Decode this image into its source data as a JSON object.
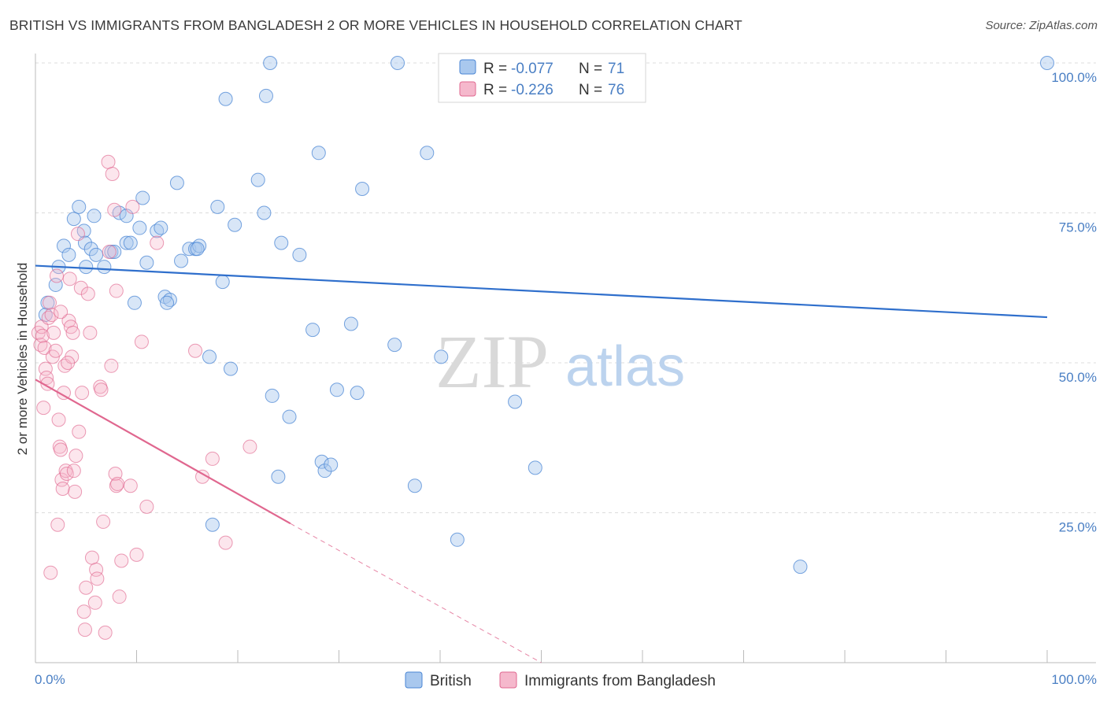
{
  "title": "BRITISH VS IMMIGRANTS FROM BANGLADESH 2 OR MORE VEHICLES IN HOUSEHOLD CORRELATION CHART",
  "source": "Source: ZipAtlas.com",
  "watermark": {
    "zip": "ZIP",
    "atlas": "atlas"
  },
  "colors": {
    "british": "#4a86d4",
    "british_fill": "#a9c8ee",
    "bangladesh": "#e0678f",
    "bangladesh_fill": "#f5b8cc",
    "tick": "#4a7fc4"
  },
  "legend_box": {
    "rows": [
      {
        "r_label": "R =",
        "r_value": "-0.077",
        "n_label": "N =",
        "n_value": "71"
      },
      {
        "r_label": "R =",
        "r_value": "-0.226",
        "n_label": "N =",
        "n_value": "76"
      }
    ]
  },
  "bottom_legend": [
    "British",
    "Immigrants from Bangladesh"
  ],
  "chart_data": {
    "type": "scatter",
    "title": "BRITISH VS IMMIGRANTS FROM BANGLADESH 2 OR MORE VEHICLES IN HOUSEHOLD CORRELATION CHART",
    "xlabel": "",
    "ylabel": "2 or more Vehicles in Household",
    "xlim": [
      0,
      100
    ],
    "ylim": [
      0,
      100
    ],
    "x_tick_labels": [
      "0.0%",
      "100.0%"
    ],
    "y_tick_labels": [
      "25.0%",
      "50.0%",
      "75.0%",
      "100.0%"
    ],
    "y_ticks": [
      25,
      50,
      75,
      100
    ],
    "grid": true,
    "legend_position": "bottom",
    "series": [
      {
        "name": "British",
        "r": -0.077,
        "n": 71,
        "trend": {
          "x0": 0,
          "y0": 66.2,
          "x1": 100,
          "y1": 57.6
        },
        "points": [
          [
            1.2,
            60.0
          ],
          [
            2.0,
            63.0
          ],
          [
            2.3,
            66.0
          ],
          [
            2.8,
            69.5
          ],
          [
            3.3,
            68.0
          ],
          [
            3.8,
            74.0
          ],
          [
            4.3,
            76.0
          ],
          [
            4.8,
            72.0
          ],
          [
            4.9,
            70.0
          ],
          [
            5.5,
            69.0
          ],
          [
            5.8,
            74.5
          ],
          [
            6.8,
            66.0
          ],
          [
            7.5,
            68.5
          ],
          [
            7.8,
            68.5
          ],
          [
            8.3,
            75.0
          ],
          [
            9.0,
            70.0
          ],
          [
            9.4,
            70.0
          ],
          [
            9.8,
            60.0
          ],
          [
            10.3,
            72.5
          ],
          [
            10.6,
            77.5
          ],
          [
            11.0,
            66.7
          ],
          [
            12.0,
            72.0
          ],
          [
            12.4,
            72.5
          ],
          [
            12.8,
            61.0
          ],
          [
            13.3,
            60.5
          ],
          [
            14.0,
            80.0
          ],
          [
            14.4,
            67.0
          ],
          [
            15.2,
            69.0
          ],
          [
            15.8,
            69.0
          ],
          [
            16.2,
            69.5
          ],
          [
            17.2,
            51.0
          ],
          [
            18.0,
            76.0
          ],
          [
            18.5,
            63.5
          ],
          [
            19.3,
            49.0
          ],
          [
            19.7,
            73.0
          ],
          [
            18.8,
            94.0
          ],
          [
            22.0,
            80.5
          ],
          [
            22.6,
            75.0
          ],
          [
            22.8,
            94.5
          ],
          [
            23.2,
            100.0
          ],
          [
            23.4,
            44.5
          ],
          [
            24.0,
            31.0
          ],
          [
            24.3,
            70.0
          ],
          [
            25.1,
            41.0
          ],
          [
            26.1,
            68.0
          ],
          [
            27.4,
            55.5
          ],
          [
            28.0,
            85.0
          ],
          [
            28.3,
            33.5
          ],
          [
            28.6,
            32.0
          ],
          [
            29.2,
            33.0
          ],
          [
            29.8,
            45.5
          ],
          [
            31.2,
            56.5
          ],
          [
            31.8,
            45.0
          ],
          [
            32.3,
            79.0
          ],
          [
            35.5,
            53.0
          ],
          [
            35.8,
            100.0
          ],
          [
            37.5,
            29.5
          ],
          [
            38.7,
            85.0
          ],
          [
            40.1,
            51.0
          ],
          [
            41.7,
            20.5
          ],
          [
            47.4,
            43.5
          ],
          [
            49.4,
            32.5
          ],
          [
            75.6,
            16.0
          ],
          [
            100.0,
            100.0
          ],
          [
            5.0,
            66.0
          ],
          [
            1.0,
            58.0
          ],
          [
            17.5,
            23.0
          ],
          [
            6.0,
            68.0
          ],
          [
            13.0,
            60.0
          ],
          [
            9.0,
            74.5
          ],
          [
            16.0,
            69.0
          ]
        ]
      },
      {
        "name": "Immigrants from Bangladesh",
        "r": -0.226,
        "n": 76,
        "trend": {
          "x0": 0,
          "y0": 47.2,
          "x1": 25.2,
          "y1": 23.2
        },
        "trend_extension": {
          "x0": 25.2,
          "y0": 23.2,
          "x1": 50.0,
          "y1": 0
        },
        "points": [
          [
            0.3,
            55.0
          ],
          [
            0.5,
            53.0
          ],
          [
            0.6,
            56.0
          ],
          [
            0.7,
            54.5
          ],
          [
            0.9,
            52.5
          ],
          [
            1.0,
            49.0
          ],
          [
            1.1,
            47.5
          ],
          [
            1.2,
            46.5
          ],
          [
            1.3,
            57.5
          ],
          [
            1.4,
            60.0
          ],
          [
            1.6,
            58.0
          ],
          [
            1.7,
            51.0
          ],
          [
            1.8,
            55.0
          ],
          [
            2.0,
            52.0
          ],
          [
            2.1,
            64.5
          ],
          [
            2.2,
            23.0
          ],
          [
            2.3,
            40.5
          ],
          [
            2.4,
            36.0
          ],
          [
            2.5,
            35.5
          ],
          [
            2.6,
            30.5
          ],
          [
            2.7,
            29.0
          ],
          [
            2.8,
            45.0
          ],
          [
            2.9,
            49.5
          ],
          [
            3.0,
            32.0
          ],
          [
            3.1,
            31.5
          ],
          [
            3.3,
            57.0
          ],
          [
            3.4,
            64.0
          ],
          [
            3.5,
            56.0
          ],
          [
            3.6,
            51.0
          ],
          [
            3.7,
            55.0
          ],
          [
            3.8,
            32.0
          ],
          [
            3.9,
            28.5
          ],
          [
            4.0,
            34.5
          ],
          [
            4.2,
            71.5
          ],
          [
            4.3,
            38.5
          ],
          [
            4.5,
            62.5
          ],
          [
            4.6,
            45.0
          ],
          [
            4.8,
            8.5
          ],
          [
            4.9,
            5.5
          ],
          [
            5.0,
            12.5
          ],
          [
            5.2,
            61.5
          ],
          [
            5.4,
            55.0
          ],
          [
            5.6,
            17.5
          ],
          [
            5.9,
            10.0
          ],
          [
            6.0,
            15.5
          ],
          [
            6.1,
            14.0
          ],
          [
            6.4,
            46.0
          ],
          [
            6.5,
            45.5
          ],
          [
            6.7,
            23.5
          ],
          [
            6.9,
            5.0
          ],
          [
            7.2,
            83.5
          ],
          [
            7.3,
            68.5
          ],
          [
            7.5,
            49.5
          ],
          [
            7.6,
            81.5
          ],
          [
            7.8,
            75.5
          ],
          [
            8.0,
            62.0
          ],
          [
            7.9,
            31.5
          ],
          [
            8.0,
            29.5
          ],
          [
            8.1,
            29.8
          ],
          [
            8.3,
            11.0
          ],
          [
            8.5,
            17.0
          ],
          [
            9.4,
            29.5
          ],
          [
            9.6,
            76.0
          ],
          [
            10.0,
            18.0
          ],
          [
            10.5,
            53.5
          ],
          [
            11.0,
            26.0
          ],
          [
            12.0,
            70.0
          ],
          [
            15.8,
            52.0
          ],
          [
            16.5,
            31.0
          ],
          [
            17.5,
            34.0
          ],
          [
            18.8,
            20.0
          ],
          [
            21.2,
            36.0
          ],
          [
            1.5,
            15.0
          ],
          [
            0.8,
            42.5
          ],
          [
            3.2,
            50.0
          ],
          [
            2.5,
            58.5
          ]
        ]
      }
    ]
  }
}
